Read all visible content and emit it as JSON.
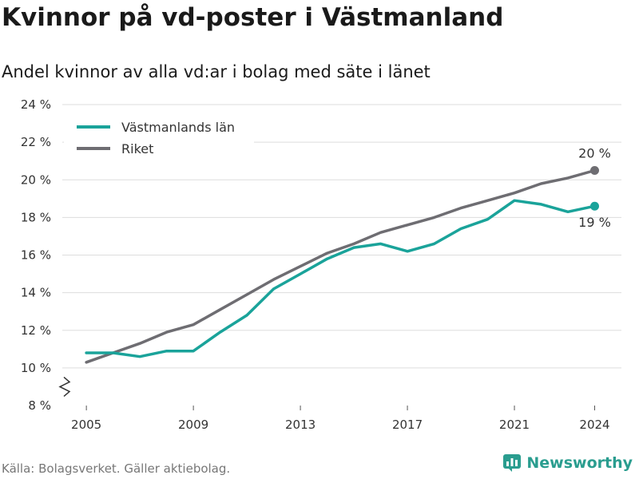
{
  "header": {
    "title": "Kvinnor på vd-poster i Västmanland",
    "subtitle": "Andel kvinnor av alla vd:ar i bolag med säte i länet"
  },
  "footer": {
    "source": "Källa: Bolagsverket. Gäller aktiebolag.",
    "brand": "Newsworthy"
  },
  "colors": {
    "vastmanland": "#1aa39a",
    "riket": "#6e6d72",
    "grid": "#dddddd",
    "brand": "#2a9d8f"
  },
  "chart_data": {
    "type": "line",
    "title": "Kvinnor på vd-poster i Västmanland",
    "subtitle": "Andel kvinnor av alla vd:ar i bolag med säte i länet",
    "x": [
      2005,
      2006,
      2007,
      2008,
      2009,
      2010,
      2011,
      2012,
      2013,
      2014,
      2015,
      2016,
      2017,
      2018,
      2019,
      2020,
      2021,
      2022,
      2023,
      2024
    ],
    "x_ticks": [
      2005,
      2009,
      2013,
      2017,
      2021,
      2024
    ],
    "x_tick_labels": [
      "2005",
      "2009",
      "2013",
      "2017",
      "2021",
      "2024"
    ],
    "y_ticks": [
      8,
      10,
      12,
      14,
      16,
      18,
      20,
      22,
      24
    ],
    "y_tick_labels": [
      "8 %",
      "10 %",
      "12 %",
      "14 %",
      "16 %",
      "18 %",
      "20 %",
      "22 %",
      "24 %"
    ],
    "ylim": [
      8,
      24
    ],
    "xlim": [
      2004.1,
      2025
    ],
    "axis_break": true,
    "grid": true,
    "legend_position": "top-left",
    "series": [
      {
        "name": "Västmanlands län",
        "color": "#1aa39a",
        "values": [
          10.8,
          10.8,
          10.6,
          10.9,
          10.9,
          11.9,
          12.8,
          14.2,
          15.0,
          15.8,
          16.4,
          16.6,
          16.2,
          16.6,
          17.4,
          17.9,
          18.9,
          18.7,
          18.3,
          18.6
        ],
        "end_label": "19 %"
      },
      {
        "name": "Riket",
        "color": "#6e6d72",
        "values": [
          10.3,
          10.8,
          11.3,
          11.9,
          12.3,
          13.1,
          13.9,
          14.7,
          15.4,
          16.1,
          16.6,
          17.2,
          17.6,
          18.0,
          18.5,
          18.9,
          19.3,
          19.8,
          20.1,
          20.5
        ],
        "end_label": "20 %"
      }
    ]
  }
}
